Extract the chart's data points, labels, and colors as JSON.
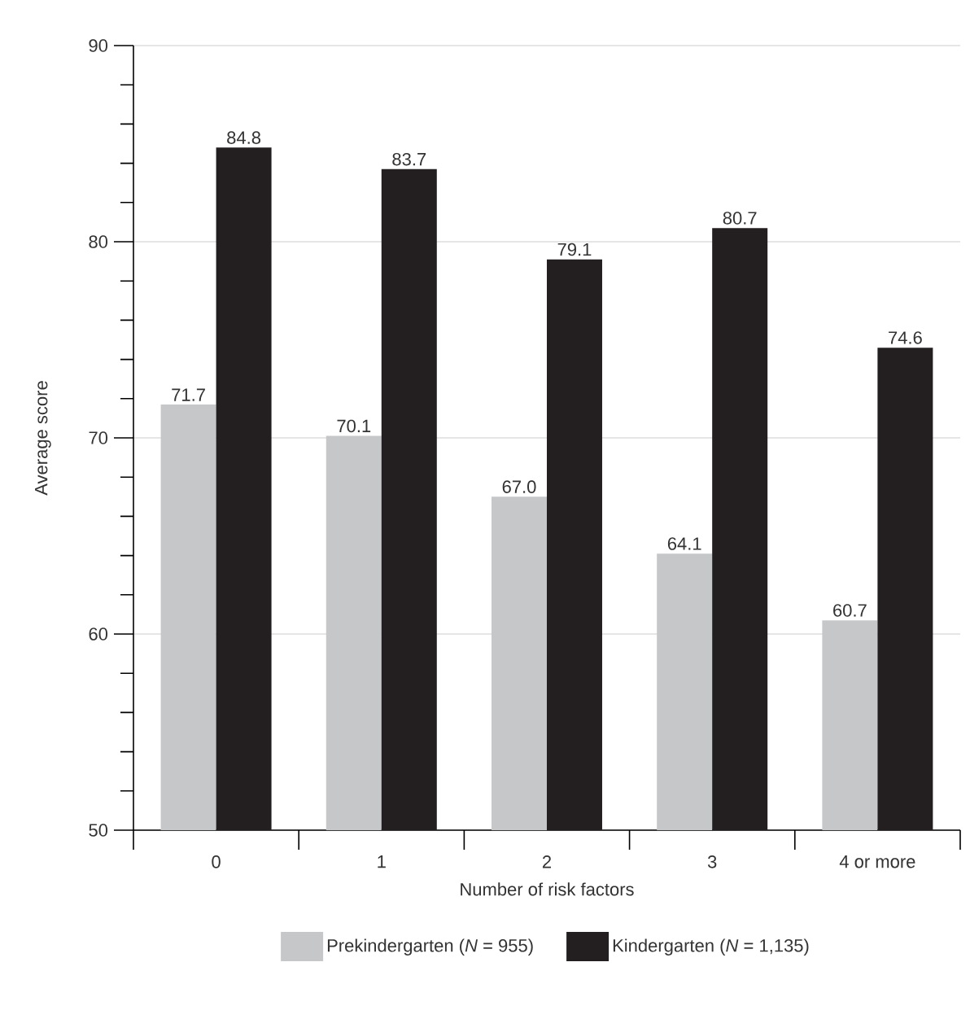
{
  "chart_data": {
    "type": "bar",
    "xlabel": "Number of risk factors",
    "ylabel": "Average score",
    "categories": [
      "0",
      "1",
      "2",
      "3",
      "4 or more"
    ],
    "series": [
      {
        "name": "Prekindergarten (*N* = 955)",
        "color": "#c6c7c9",
        "values": [
          71.7,
          70.1,
          67.0,
          64.1,
          60.7
        ],
        "value_labels": [
          "71.7",
          "70.1",
          "67.0",
          "64.1",
          "60.7"
        ]
      },
      {
        "name": "Kindergarten (*N* = 1,135)",
        "color": "#231f20",
        "values": [
          84.8,
          83.7,
          79.1,
          80.7,
          74.6
        ],
        "value_labels": [
          "84.8",
          "83.7",
          "79.1",
          "80.7",
          "74.6"
        ]
      }
    ],
    "ylim": [
      50,
      90
    ],
    "yticks": [
      50,
      {
        "value": 52,
        "label": null
      },
      {
        "value": 54,
        "label": null
      },
      {
        "value": 56,
        "label": null
      },
      {
        "value": 58,
        "label": null
      },
      60,
      {
        "value": 62,
        "label": null
      },
      {
        "value": 64,
        "label": null
      },
      {
        "value": 66,
        "label": null
      },
      {
        "value": 68,
        "label": null
      },
      70,
      {
        "value": 72,
        "label": null
      },
      {
        "value": 74,
        "label": null
      },
      {
        "value": 76,
        "label": null
      },
      {
        "value": 78,
        "label": null
      },
      80,
      {
        "value": 82,
        "label": null
      },
      {
        "value": 84,
        "label": null
      },
      {
        "value": 86,
        "label": null
      },
      {
        "value": 88,
        "label": null
      },
      90
    ],
    "grid": "y",
    "legend": "bottom"
  }
}
